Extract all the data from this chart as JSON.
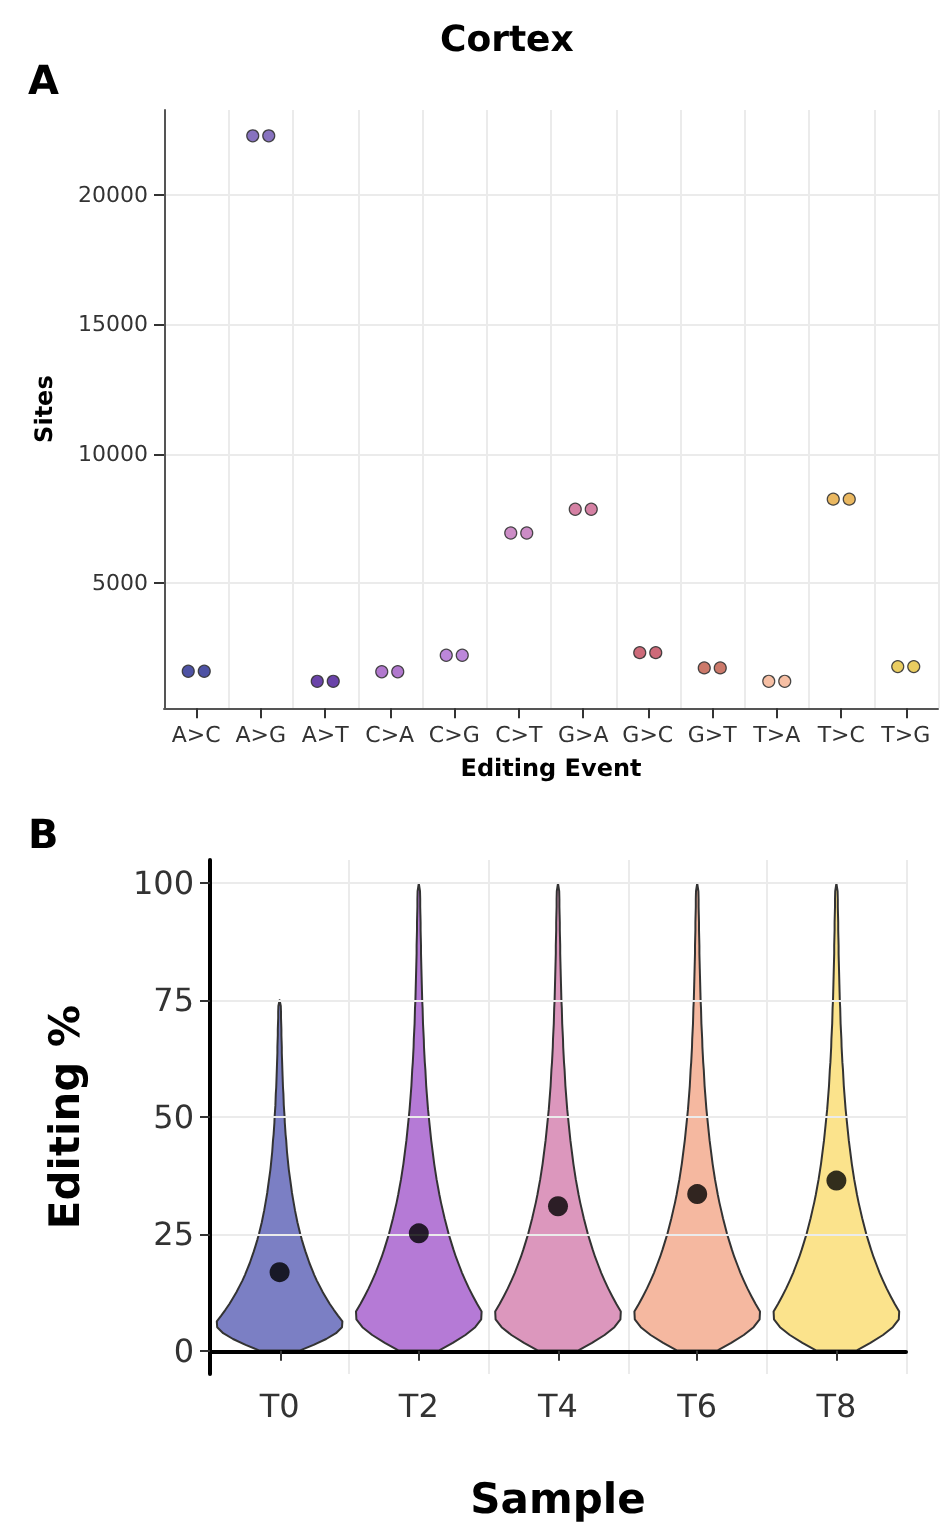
{
  "chart_data": [
    {
      "type": "scatter",
      "title": "Cortex",
      "annotations": [
        "A"
      ],
      "xlabel": "Editing Event",
      "ylabel": "Sites",
      "categories": [
        "A>C",
        "A>G",
        "A>T",
        "C>A",
        "C>G",
        "C>T",
        "G>A",
        "G>C",
        "G>T",
        "T>A",
        "T>C",
        "T>G"
      ],
      "series": [
        {
          "colors": [
            "#3b3f9a",
            "#7a63b8",
            "#5a2fa0",
            "#a869c9",
            "#b57ad6",
            "#c77fc0",
            "#d0739a",
            "#c85a6a",
            "#c76a5a",
            "#f5b89a",
            "#e8b050",
            "#e8c850"
          ],
          "values": [
            1580,
            22300,
            1190,
            1560,
            2200,
            6930,
            7850,
            2300,
            1710,
            1190,
            8240,
            1760
          ]
        },
        {
          "colors": [
            "#3b3f9a",
            "#7a63b8",
            "#5a2fa0",
            "#a869c9",
            "#b57ad6",
            "#c77fc0",
            "#d0739a",
            "#c85a6a",
            "#c76a5a",
            "#f5b89a",
            "#e8b050",
            "#e8c850"
          ],
          "values": [
            1580,
            22300,
            1190,
            1560,
            2200,
            6930,
            7850,
            2300,
            1710,
            1190,
            8240,
            1760
          ]
        }
      ],
      "ylim": [
        150,
        23300
      ],
      "yticks": [
        5000,
        10000,
        15000,
        20000
      ],
      "grid": true,
      "marker": "circle"
    },
    {
      "type": "scatter",
      "annotations": [
        "B"
      ],
      "xlabel": "Sample",
      "ylabel": "Editing %",
      "categories": [
        "T0",
        "T2",
        "T4",
        "T6",
        "T8"
      ],
      "series": [
        {
          "color": "#000000",
          "values": [
            16.8,
            25.1,
            30.9,
            33.5,
            36.4
          ]
        }
      ],
      "ylim": [
        -5,
        105
      ],
      "yticks": [
        0,
        25,
        50,
        75,
        100
      ],
      "grid": true,
      "marker": "circle"
    }
  ]
}
